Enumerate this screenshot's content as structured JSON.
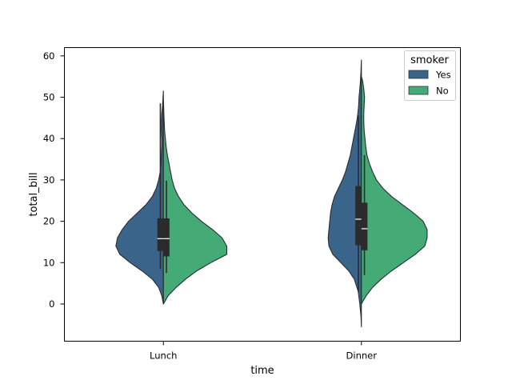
{
  "chart_data": {
    "type": "violin",
    "title": "",
    "xlabel": "time",
    "ylabel": "total_bill",
    "categories": [
      "Lunch",
      "Dinner"
    ],
    "split_by": "smoker",
    "ylim": [
      -9,
      62
    ],
    "yticks": [
      0,
      10,
      20,
      30,
      40,
      50,
      60
    ],
    "grid": false,
    "legend": {
      "title": "smoker",
      "placement": "top-right",
      "entries": [
        {
          "label": "Yes",
          "color": "#3a6489"
        },
        {
          "label": "No",
          "color": "#44ab77"
        }
      ]
    },
    "series": [
      {
        "name": "Yes",
        "color": "#3a6489",
        "groups": [
          {
            "category": "Lunch",
            "density_y": [
              0,
              2,
              4,
              6,
              8,
              10,
              12,
              14,
              16,
              18,
              20,
              22,
              24,
              26,
              28,
              30,
              32,
              34,
              36,
              38,
              40,
              42,
              44,
              46,
              48,
              50,
              51.5
            ],
            "density_w": [
              0.0,
              0.02,
              0.06,
              0.14,
              0.27,
              0.42,
              0.55,
              0.6,
              0.58,
              0.52,
              0.44,
              0.33,
              0.22,
              0.14,
              0.09,
              0.06,
              0.04,
              0.03,
              0.025,
              0.02,
              0.02,
              0.025,
              0.025,
              0.02,
              0.01,
              0.005,
              0.0
            ],
            "box": {
              "whisker_low": 8.5,
              "q1": 12.8,
              "median": 15.8,
              "q3": 20.7,
              "whisker_high": 48.5
            }
          },
          {
            "category": "Dinner",
            "density_y": [
              -5.5,
              -3,
              0,
              3,
              6,
              8,
              10,
              12,
              14,
              16,
              18,
              20,
              22,
              24,
              26,
              28,
              30,
              32,
              34,
              36,
              38,
              40,
              42,
              44,
              46,
              48,
              50,
              52,
              54,
              56,
              59
            ],
            "density_w": [
              0.0,
              0.005,
              0.02,
              0.04,
              0.09,
              0.16,
              0.26,
              0.36,
              0.41,
              0.42,
              0.41,
              0.4,
              0.39,
              0.37,
              0.34,
              0.29,
              0.24,
              0.2,
              0.17,
              0.14,
              0.12,
              0.1,
              0.08,
              0.06,
              0.045,
              0.035,
              0.03,
              0.02,
              0.012,
              0.006,
              0.0
            ],
            "box": {
              "whisker_low": 3.0,
              "q1": 14.2,
              "median": 20.5,
              "q3": 28.5,
              "whisker_high": 45.5
            }
          }
        ]
      },
      {
        "name": "No",
        "color": "#44ab77",
        "groups": [
          {
            "category": "Lunch",
            "density_y": [
              0,
              2,
              4,
              6,
              8,
              10,
              12,
              14,
              16,
              18,
              20,
              22,
              24,
              26,
              28,
              30,
              32,
              34,
              36,
              38,
              40,
              42,
              44,
              46,
              48,
              49
            ],
            "density_w": [
              0.0,
              0.06,
              0.16,
              0.28,
              0.42,
              0.6,
              0.8,
              0.8,
              0.74,
              0.62,
              0.48,
              0.36,
              0.26,
              0.19,
              0.14,
              0.11,
              0.09,
              0.07,
              0.05,
              0.035,
              0.025,
              0.015,
              0.01,
              0.006,
              0.003,
              0.0
            ],
            "box": {
              "whisker_low": 7.5,
              "q1": 11.5,
              "median": 15.8,
              "q3": 20.7,
              "whisker_high": 29.8
            }
          },
          {
            "category": "Dinner",
            "density_y": [
              0,
              2,
              4,
              6,
              8,
              10,
              12,
              14,
              16,
              18,
              20,
              22,
              24,
              26,
              28,
              30,
              32,
              34,
              36,
              38,
              40,
              42,
              44,
              46,
              48,
              50,
              52,
              54,
              55
            ],
            "density_w": [
              0.0,
              0.06,
              0.14,
              0.25,
              0.38,
              0.53,
              0.68,
              0.8,
              0.83,
              0.83,
              0.78,
              0.66,
              0.52,
              0.38,
              0.27,
              0.19,
              0.14,
              0.1,
              0.07,
              0.055,
              0.045,
              0.035,
              0.03,
              0.03,
              0.035,
              0.04,
              0.03,
              0.015,
              0.0
            ],
            "box": {
              "whisker_low": 7.0,
              "q1": 13.0,
              "median": 18.2,
              "q3": 24.5,
              "whisker_high": 36.0
            }
          }
        ]
      }
    ]
  }
}
